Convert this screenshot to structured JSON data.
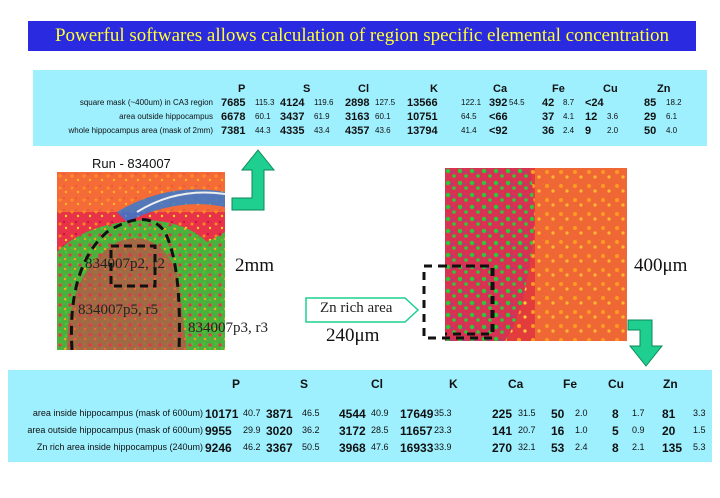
{
  "banner": {
    "title": "Powerful softwares allows calculation of region specific elemental concentration"
  },
  "top_table": {
    "columns": [
      "P",
      "S",
      "Cl",
      "K",
      "Ca",
      "Fe",
      "Cu",
      "Zn"
    ],
    "rows": [
      {
        "label": "square mask (~400um) in CA3 region",
        "cells": [
          "7685",
          "115.3",
          "4124",
          "119.6",
          "2898",
          "127.5",
          "13566",
          "122.1",
          "392",
          "54.5",
          "42",
          "8.7",
          "<24",
          "",
          "85",
          "18.2"
        ]
      },
      {
        "label": "area outside hippocampus",
        "cells": [
          "6678",
          "60.1",
          "3437",
          "61.9",
          "3163",
          "60.1",
          "10751",
          "64.5",
          "<66",
          "",
          "37",
          "4.1",
          "12",
          "3.6",
          "29",
          "6.1"
        ]
      },
      {
        "label": "whole hippocampus area (mask of 2mm)",
        "cells": [
          "7381",
          "44.3",
          "4335",
          "43.4",
          "4357",
          "43.6",
          "13794",
          "41.4",
          "<92",
          "",
          "36",
          "2.4",
          "9",
          "2.0",
          "50",
          "4.0"
        ]
      }
    ]
  },
  "left_image": {
    "run_label": "Run - 834007",
    "labels": [
      "834007p2, r2",
      "834007p5, r5",
      "834007p3, r3"
    ],
    "scale": "2mm"
  },
  "right_image": {
    "scale": "400μm"
  },
  "zn_area": {
    "label": "Zn rich area",
    "size": "240μm"
  },
  "bottom_table": {
    "columns": [
      "P",
      "S",
      "Cl",
      "K",
      "Ca",
      "Fe",
      "Cu",
      "Zn"
    ],
    "rows": [
      {
        "label": "area inside hippocampus (mask of 600um)",
        "cells": [
          "10171",
          "40.7",
          "3871",
          "46.5",
          "4544",
          "40.9",
          "17649",
          "35.3",
          "225",
          "31.5",
          "50",
          "2.0",
          "8",
          "1.7",
          "81",
          "3.3"
        ]
      },
      {
        "label": "area outside hippocampus (mask of 600um)",
        "cells": [
          "9955",
          "29.9",
          "3020",
          "36.2",
          "3172",
          "28.5",
          "11657",
          "23.3",
          "141",
          "20.7",
          "16",
          "1.0",
          "5",
          "0.9",
          "20",
          "1.5"
        ]
      },
      {
        "label": "Zn rich area inside hippocampus (240um)",
        "cells": [
          "9246",
          "46.2",
          "3367",
          "50.5",
          "3968",
          "47.6",
          "16933",
          "33.9",
          "270",
          "32.1",
          "53",
          "2.4",
          "8",
          "2.1",
          "135",
          "5.3"
        ]
      }
    ]
  },
  "colors": {
    "banner_bg": "#2a2ae0",
    "banner_text": "#ffff33",
    "table_bg": "#9ff0ff",
    "arrow": "#1fcf8f"
  }
}
